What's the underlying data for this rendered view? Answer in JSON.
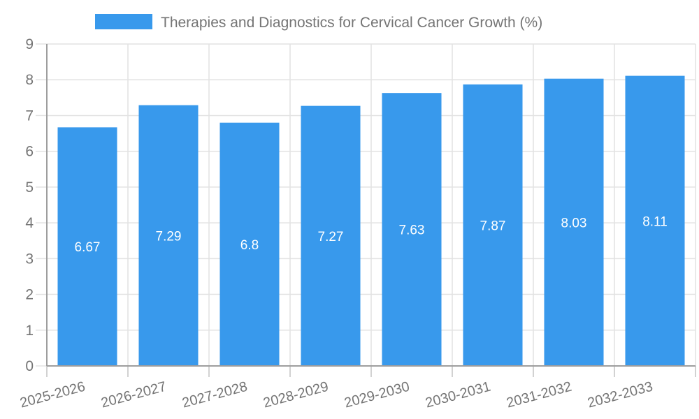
{
  "chart_data": {
    "type": "bar",
    "title": "Therapies and Diagnostics for Cervical Cancer Growth (%)",
    "legend_position": "top",
    "categories": [
      "2025-2026",
      "2026-2027",
      "2027-2028",
      "2028-2029",
      "2029-2030",
      "2030-2031",
      "2031-2032",
      "2032-2033"
    ],
    "values": [
      6.67,
      7.29,
      6.8,
      7.27,
      7.63,
      7.87,
      8.03,
      8.11
    ],
    "value_labels": [
      "6.67",
      "7.29",
      "6.8",
      "7.27",
      "7.63",
      "7.87",
      "8.03",
      "8.11"
    ],
    "xlabel": "",
    "ylabel": "",
    "ylim": [
      0,
      9
    ],
    "ytick_step": 1,
    "ytick_labels": [
      "0",
      "1",
      "2",
      "3",
      "4",
      "5",
      "6",
      "7",
      "8",
      "9"
    ],
    "grid": true,
    "x_label_rotation_deg": -15,
    "colors": {
      "bar": "#3899EC",
      "value_label": "#FFFFFF",
      "axis_text": "#757575",
      "title_text": "#757575",
      "grid_line": "#E2E2E2",
      "axis_line": "#9E9E9E",
      "tick": "#C2C2C2",
      "background": "#FFFFFF"
    }
  }
}
